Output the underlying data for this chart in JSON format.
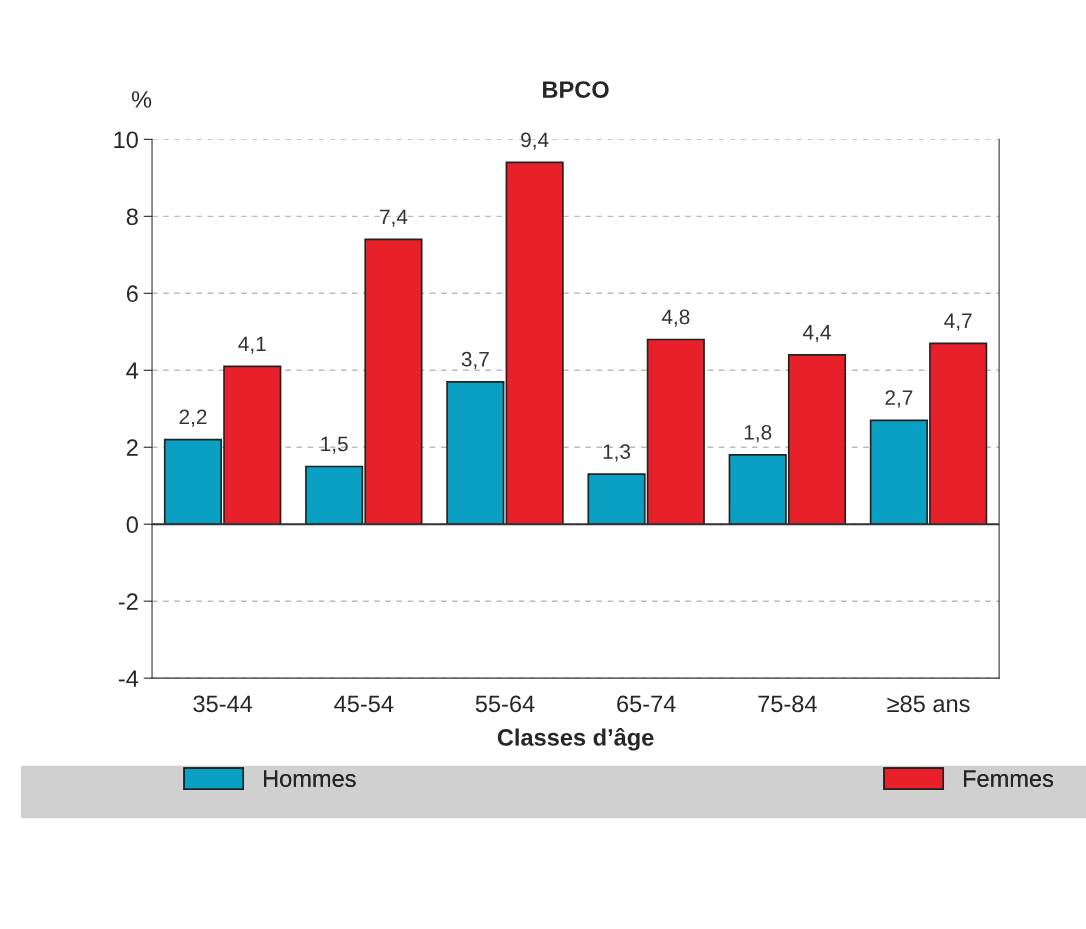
{
  "chart_data": {
    "type": "bar",
    "title": "BPCO",
    "ylabel": "%",
    "xlabel": "Classes d’âge",
    "categories": [
      "35-44",
      "45-54",
      "55-64",
      "65-74",
      "75-84",
      "≥85 ans"
    ],
    "series": [
      {
        "name": "Hommes",
        "color": "#0aa0c4",
        "values": [
          2.2,
          1.5,
          3.7,
          1.3,
          1.8,
          2.7
        ],
        "value_labels": [
          "2,2",
          "1,5",
          "3,7",
          "1,3",
          "1,8",
          "2,7"
        ]
      },
      {
        "name": "Femmes",
        "color": "#e8202a",
        "values": [
          4.1,
          7.4,
          9.4,
          4.8,
          4.4,
          4.7
        ],
        "value_labels": [
          "4,1",
          "7,4",
          "9,4",
          "4,8",
          "4,4",
          "4,7"
        ]
      }
    ],
    "ylim": [
      -4,
      10
    ],
    "yticks": [
      -4,
      -2,
      0,
      2,
      4,
      6,
      8,
      10
    ],
    "grid": "y",
    "legend": "bottom",
    "ref_lines": [
      {
        "axis": "y",
        "value": 0,
        "color": "#333333",
        "line_style": "solid"
      }
    ]
  }
}
